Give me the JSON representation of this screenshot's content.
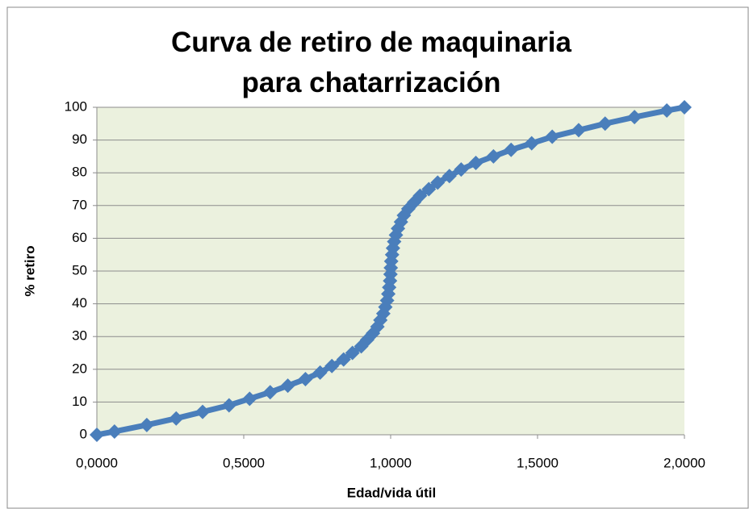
{
  "chart_data": {
    "type": "scatter",
    "title": "Curva de retiro de maquinaria para chatarrización",
    "x_label": "Edad/vida útil",
    "y_label": "% retiro",
    "xlim": [
      0,
      2
    ],
    "ylim": [
      0,
      100
    ],
    "xticks": [
      {
        "value": 0,
        "label": "0,0000"
      },
      {
        "value": 0.5,
        "label": "0,5000"
      },
      {
        "value": 1,
        "label": "1,0000"
      },
      {
        "value": 1.5,
        "label": "1,5000"
      },
      {
        "value": 2,
        "label": "2,0000"
      }
    ],
    "yticks": [
      0,
      10,
      20,
      30,
      40,
      50,
      60,
      70,
      80,
      90,
      100
    ],
    "grid": true,
    "series": [
      {
        "color": "#4a7ebb",
        "x": [
          0,
          0.06,
          0.17,
          0.27,
          0.36,
          0.45,
          0.52,
          0.59,
          0.65,
          0.71,
          0.76,
          0.8,
          0.84,
          0.87,
          0.9,
          0.92,
          0.94,
          0.955,
          0.965,
          0.975,
          0.982,
          0.988,
          0.992,
          0.995,
          0.998,
          0.9995,
          1.0005,
          1.002,
          1.005,
          1.008,
          1.012,
          1.018,
          1.025,
          1.035,
          1.045,
          1.06,
          1.08,
          1.1,
          1.13,
          1.16,
          1.2,
          1.24,
          1.29,
          1.35,
          1.41,
          1.48,
          1.55,
          1.64,
          1.73,
          1.83,
          1.94,
          2
        ],
        "values": [
          0,
          1,
          3,
          5,
          7,
          9,
          11,
          13,
          15,
          17,
          19,
          21,
          23,
          25,
          27,
          29,
          31,
          33,
          35,
          37,
          39,
          41,
          43,
          45,
          47,
          49,
          51,
          53,
          55,
          57,
          59,
          61,
          63,
          65,
          67,
          69,
          71,
          73,
          75,
          77,
          79,
          81,
          83,
          85,
          87,
          89,
          91,
          93,
          95,
          97,
          99,
          100
        ]
      }
    ]
  }
}
